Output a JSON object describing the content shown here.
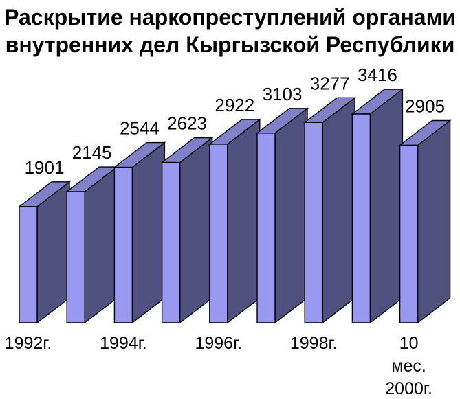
{
  "title": {
    "line1": "Раскрытие наркопреступлений органами",
    "line2": "внутренних дел Кыргызской Республики"
  },
  "chart_data": {
    "type": "bar",
    "style": "3d-extruded",
    "title": "Раскрытие наркопреступлений органами внутренних дел Кыргызской Республики",
    "values": [
      1901,
      2145,
      2544,
      2623,
      2922,
      3103,
      3277,
      3416,
      2905
    ],
    "value_labels": [
      "1901",
      "2145",
      "2544",
      "2623",
      "2922",
      "3103",
      "3277",
      "3416",
      "2905"
    ],
    "categories": [
      "1992г.",
      "",
      "1994г.",
      "",
      "1996г.",
      "",
      "1998г.",
      "",
      "10 мес. 2000г."
    ],
    "x_tick_labels": [
      {
        "bar_index": 0,
        "lines": [
          "1992г."
        ]
      },
      {
        "bar_index": 2,
        "lines": [
          "1994г."
        ]
      },
      {
        "bar_index": 4,
        "lines": [
          "1996г."
        ]
      },
      {
        "bar_index": 6,
        "lines": [
          "1998г."
        ]
      },
      {
        "bar_index": 8,
        "lines": [
          "10",
          "мес.",
          "2000г."
        ]
      }
    ],
    "ylim": [
      0,
      3416
    ],
    "grid": false,
    "legend": false,
    "axes_visible": false,
    "colors": {
      "bar_front": "#9999F2",
      "bar_top": "#8181CA",
      "bar_side": "#515180",
      "outline": "#000000",
      "background": "#FFFFFF",
      "text": "#000000"
    }
  }
}
